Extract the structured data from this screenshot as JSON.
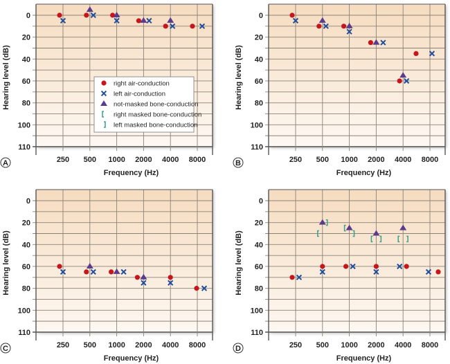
{
  "figure": {
    "colors": {
      "right_air": "#c4161c",
      "left_air": "#1f4e9c",
      "bone_unmasked": "#5b3c8c",
      "masked_bracket": "#3aa08a",
      "grid": "#8a8276",
      "axis": "#555555",
      "bg_top": "#f6dcc0",
      "bg_bottom": "#fdf8f2"
    },
    "legend": {
      "items": [
        {
          "symbol": "circle",
          "series": "right_air",
          "label": "right air-conduction"
        },
        {
          "symbol": "cross",
          "series": "left_air",
          "label": "left air-conduction"
        },
        {
          "symbol": "triangle",
          "series": "bone_unmasked",
          "label": "not-masked bone-conduction"
        },
        {
          "symbol": "bracket-left",
          "series": "right_masked",
          "label": "right masked bone-conduction"
        },
        {
          "symbol": "bracket-right",
          "series": "left_masked",
          "label": "left masked bone-conduction"
        }
      ]
    }
  },
  "chart_data": [
    {
      "type": "scatter",
      "panel_label": "A",
      "xlabel": "Frequency (Hz)",
      "ylabel": "Hearing level (dB)",
      "categories": [
        "250",
        "500",
        "1000",
        "2000",
        "4000",
        "8000"
      ],
      "y_tick_labels": [
        "0",
        "20",
        "40",
        "60",
        "80",
        "100",
        "110"
      ],
      "ylim": [
        -10,
        110
      ],
      "y_inverted": true,
      "grid": true,
      "legend": "center-right",
      "series": [
        {
          "name": "right air-conduction",
          "key": "right_air",
          "values": [
            0,
            0,
            0,
            5,
            10,
            10
          ]
        },
        {
          "name": "left air-conduction",
          "key": "left_air",
          "values": [
            5,
            0,
            5,
            5,
            10,
            10
          ]
        },
        {
          "name": "not-masked bone-conduction",
          "key": "bone_unmasked",
          "values": [
            null,
            -5,
            0,
            5,
            5,
            null
          ]
        }
      ]
    },
    {
      "type": "scatter",
      "panel_label": "B",
      "xlabel": "Frequency (Hz)",
      "ylabel": "Hearing level (dB)",
      "categories": [
        "250",
        "500",
        "1000",
        "2000",
        "4000",
        "8000"
      ],
      "y_tick_labels": [
        "0",
        "20",
        "40",
        "60",
        "80",
        "100",
        "110"
      ],
      "ylim": [
        -10,
        110
      ],
      "y_inverted": true,
      "grid": true,
      "series": [
        {
          "name": "right air-conduction",
          "key": "right_air",
          "values": [
            0,
            10,
            10,
            25,
            60,
            35
          ]
        },
        {
          "name": "left air-conduction",
          "key": "left_air",
          "values": [
            5,
            10,
            15,
            25,
            60,
            35
          ]
        },
        {
          "name": "not-masked bone-conduction",
          "key": "bone_unmasked",
          "values": [
            null,
            5,
            10,
            25,
            55,
            null
          ]
        }
      ]
    },
    {
      "type": "scatter",
      "panel_label": "C",
      "xlabel": "Frequency (Hz)",
      "ylabel": "Hearing level (dB)",
      "categories": [
        "250",
        "500",
        "1000",
        "2000",
        "4000",
        "8000"
      ],
      "y_tick_labels": [
        "0",
        "20",
        "40",
        "60",
        "80",
        "100",
        "110"
      ],
      "ylim": [
        -10,
        110
      ],
      "y_inverted": true,
      "grid": true,
      "series": [
        {
          "name": "right air-conduction",
          "key": "right_air",
          "values": [
            60,
            65,
            65,
            70,
            70,
            80
          ]
        },
        {
          "name": "left air-conduction",
          "key": "left_air",
          "values": [
            65,
            65,
            65,
            75,
            75,
            80
          ]
        },
        {
          "name": "not-masked bone-conduction",
          "key": "bone_unmasked",
          "values": [
            null,
            60,
            65,
            70,
            null,
            null
          ]
        }
      ]
    },
    {
      "type": "scatter",
      "panel_label": "D",
      "xlabel": "Frequency (Hz)",
      "ylabel": "Hearing level (dB)",
      "categories": [
        "250",
        "500",
        "1000",
        "2000",
        "4000",
        "8000"
      ],
      "y_tick_labels": [
        "0",
        "20",
        "40",
        "60",
        "80",
        "100",
        "110"
      ],
      "ylim": [
        -10,
        110
      ],
      "y_inverted": true,
      "grid": true,
      "series": [
        {
          "name": "right air-conduction",
          "key": "right_air",
          "values": [
            70,
            60,
            60,
            60,
            60,
            65
          ]
        },
        {
          "name": "left air-conduction",
          "key": "left_air",
          "values": [
            70,
            65,
            60,
            65,
            60,
            65
          ]
        },
        {
          "name": "not-masked bone-conduction",
          "key": "bone_unmasked",
          "values": [
            null,
            20,
            25,
            30,
            25,
            null
          ]
        },
        {
          "name": "right masked bone-conduction",
          "key": "right_masked",
          "values": [
            null,
            30,
            25,
            35,
            35,
            null
          ]
        },
        {
          "name": "left masked bone-conduction",
          "key": "left_masked",
          "values": [
            null,
            20,
            30,
            35,
            35,
            null
          ]
        }
      ]
    }
  ]
}
